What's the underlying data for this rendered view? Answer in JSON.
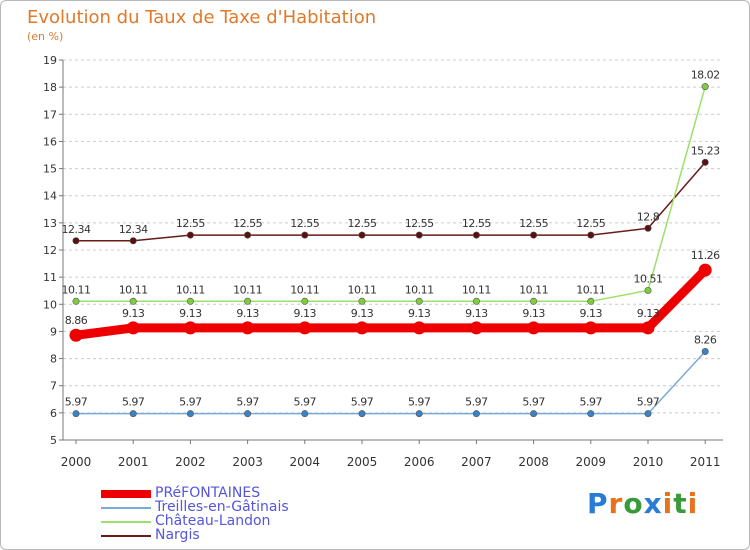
{
  "chart_data": {
    "type": "line",
    "title": "Evolution du Taux de Taxe d'Habitation",
    "ylabel": "(en %)",
    "xlabel": "",
    "x": [
      "2000",
      "2001",
      "2002",
      "2003",
      "2004",
      "2005",
      "2006",
      "2007",
      "2008",
      "2009",
      "2010",
      "2011"
    ],
    "ylim": [
      5,
      19
    ],
    "yticks": [
      "5",
      "6",
      "7",
      "8",
      "9",
      "10",
      "11",
      "12",
      "13",
      "14",
      "15",
      "16",
      "17",
      "18",
      "19"
    ],
    "grid": "horizontal dashed",
    "legend_position": "bottom-left",
    "series": [
      {
        "name": "Nargis",
        "color": "#6b1a1a",
        "marker_color": "#5a1010",
        "values": [
          12.34,
          12.34,
          12.55,
          12.55,
          12.55,
          12.55,
          12.55,
          12.55,
          12.55,
          12.55,
          12.8,
          15.23
        ],
        "labels": [
          "12.34",
          "12.34",
          "12.55",
          "12.55",
          "12.55",
          "12.55",
          "12.55",
          "12.55",
          "12.55",
          "12.55",
          "12.8",
          "15.23"
        ]
      },
      {
        "name": "Château-Landon",
        "color": "#9be06a",
        "marker_color": "#7fcc3f",
        "values": [
          10.11,
          10.11,
          10.11,
          10.11,
          10.11,
          10.11,
          10.11,
          10.11,
          10.11,
          10.11,
          10.51,
          18.02
        ],
        "labels": [
          "10.11",
          "10.11",
          "10.11",
          "10.11",
          "10.11",
          "10.11",
          "10.11",
          "10.11",
          "10.11",
          "10.11",
          "10.51",
          "18.02"
        ]
      },
      {
        "name": "Treilles-en-Gâtinais",
        "color": "#7aaad6",
        "marker_color": "#3b82c4",
        "values": [
          5.97,
          5.97,
          5.97,
          5.97,
          5.97,
          5.97,
          5.97,
          5.97,
          5.97,
          5.97,
          5.97,
          8.26
        ],
        "labels": [
          "5.97",
          "5.97",
          "5.97",
          "5.97",
          "5.97",
          "5.97",
          "5.97",
          "5.97",
          "5.97",
          "5.97",
          "5.97",
          "8.26"
        ]
      },
      {
        "name": "PRéFONTAINES",
        "color": "#ee0000",
        "marker_color": "#ee0000",
        "values": [
          8.86,
          9.13,
          9.13,
          9.13,
          9.13,
          9.13,
          9.13,
          9.13,
          9.13,
          9.13,
          9.13,
          11.26
        ],
        "labels": [
          "8.86",
          "9.13",
          "9.13",
          "9.13",
          "9.13",
          "9.13",
          "9.13",
          "9.13",
          "9.13",
          "9.13",
          "9.13",
          "11.26"
        ]
      }
    ],
    "legend": [
      "PRéFONTAINES",
      "Treilles-en-Gâtinais",
      "Château-Landon",
      "Nargis"
    ],
    "label_color": "#333333",
    "axis_color": "#777777",
    "grid_color": "#cccccc"
  },
  "branding": {
    "letters": [
      "P",
      "r",
      "o",
      "x",
      "i",
      "t",
      "i"
    ],
    "colors": [
      "#2a7bd5",
      "#e8721c",
      "#3a9a3a",
      "#2a7bd5",
      "#e8721c",
      "#3a9a3a",
      "#e8721c"
    ]
  }
}
